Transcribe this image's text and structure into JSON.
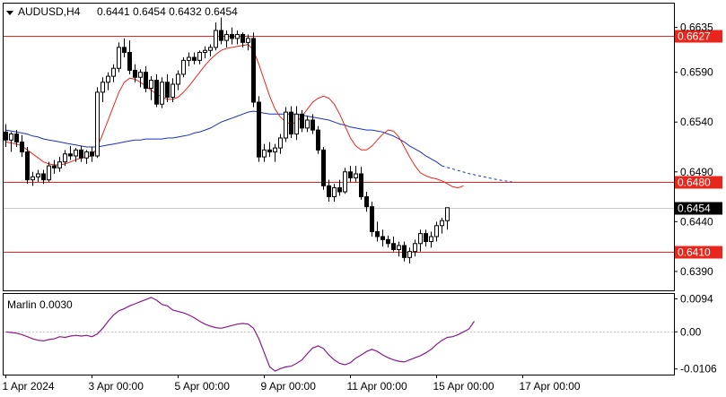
{
  "chart_data": [
    {
      "type": "candlestick",
      "symbol": "AUDUSD,H4",
      "ohlc_label": "0.6441 0.6454 0.6432 0.6454",
      "ylim": [
        0.6371,
        0.6659
      ],
      "price_ticks": [
        "0.6635",
        "0.6590",
        "0.6540",
        "0.6490",
        "0.6440",
        "0.6390"
      ],
      "price_tick_values": [
        0.6635,
        0.659,
        0.654,
        0.649,
        0.644,
        0.639
      ],
      "levels": [
        {
          "value": 0.6627,
          "label": "0.6627",
          "color": "#e8261c"
        },
        {
          "value": 0.648,
          "label": "0.6480",
          "color": "#e8261c"
        },
        {
          "value": 0.641,
          "label": "0.6410",
          "color": "#e8261c"
        }
      ],
      "current_price": {
        "value": 0.6454,
        "label": "0.6454"
      },
      "x_labels": [
        "1 Apr 2024",
        "3 Apr 00:00",
        "5 Apr 00:00",
        "9 Apr 00:00",
        "11 Apr 00:00",
        "15 Apr 00:00",
        "17 Apr 00:00"
      ],
      "x_label_bar_index": [
        0,
        16,
        32,
        48,
        64,
        80,
        96
      ],
      "candles": [
        [
          0.653,
          0.6538,
          0.6515,
          0.6522
        ],
        [
          0.6522,
          0.653,
          0.651,
          0.6528
        ],
        [
          0.6528,
          0.6532,
          0.6515,
          0.652
        ],
        [
          0.652,
          0.6527,
          0.6505,
          0.651
        ],
        [
          0.651,
          0.6515,
          0.6478,
          0.6482
        ],
        [
          0.6482,
          0.649,
          0.6476,
          0.6485
        ],
        [
          0.6485,
          0.6492,
          0.648,
          0.6488
        ],
        [
          0.6488,
          0.6492,
          0.6478,
          0.6482
        ],
        [
          0.6482,
          0.65,
          0.648,
          0.6496
        ],
        [
          0.6496,
          0.6502,
          0.6488,
          0.6494
        ],
        [
          0.6494,
          0.6505,
          0.649,
          0.65
        ],
        [
          0.65,
          0.6512,
          0.6496,
          0.6508
        ],
        [
          0.6508,
          0.6516,
          0.6502,
          0.6506
        ],
        [
          0.6506,
          0.6514,
          0.65,
          0.6512
        ],
        [
          0.6512,
          0.6516,
          0.65,
          0.6504
        ],
        [
          0.6504,
          0.6512,
          0.6498,
          0.651
        ],
        [
          0.651,
          0.6515,
          0.65,
          0.6506
        ],
        [
          0.6506,
          0.6575,
          0.6504,
          0.657
        ],
        [
          0.657,
          0.6585,
          0.656,
          0.658
        ],
        [
          0.658,
          0.659,
          0.6572,
          0.6586
        ],
        [
          0.6586,
          0.6598,
          0.658,
          0.6594
        ],
        [
          0.6594,
          0.662,
          0.659,
          0.6615
        ],
        [
          0.6615,
          0.6624,
          0.6605,
          0.661
        ],
        [
          0.661,
          0.6622,
          0.6588,
          0.6592
        ],
        [
          0.6592,
          0.6598,
          0.658,
          0.6585
        ],
        [
          0.6585,
          0.6593,
          0.6575,
          0.659
        ],
        [
          0.659,
          0.6596,
          0.657,
          0.6574
        ],
        [
          0.6574,
          0.6586,
          0.6562,
          0.6582
        ],
        [
          0.6582,
          0.6588,
          0.6555,
          0.6558
        ],
        [
          0.6558,
          0.6585,
          0.6554,
          0.658
        ],
        [
          0.658,
          0.6588,
          0.656,
          0.6565
        ],
        [
          0.6565,
          0.6584,
          0.656,
          0.6578
        ],
        [
          0.6578,
          0.6592,
          0.6572,
          0.6588
        ],
        [
          0.6588,
          0.6605,
          0.6585,
          0.6602
        ],
        [
          0.6602,
          0.661,
          0.6596,
          0.6605
        ],
        [
          0.6605,
          0.661,
          0.6598,
          0.6602
        ],
        [
          0.6602,
          0.6612,
          0.6598,
          0.661
        ],
        [
          0.661,
          0.6616,
          0.6604,
          0.6612
        ],
        [
          0.6612,
          0.6618,
          0.6606,
          0.6615
        ],
        [
          0.6615,
          0.664,
          0.6612,
          0.6632
        ],
        [
          0.6632,
          0.6645,
          0.6618,
          0.6622
        ],
        [
          0.6622,
          0.6632,
          0.6615,
          0.6628
        ],
        [
          0.6628,
          0.6635,
          0.6618,
          0.6624
        ],
        [
          0.6624,
          0.6632,
          0.6618,
          0.6628
        ],
        [
          0.6628,
          0.663,
          0.6615,
          0.662
        ],
        [
          0.662,
          0.6628,
          0.6612,
          0.6624
        ],
        [
          0.6624,
          0.663,
          0.6555,
          0.656
        ],
        [
          0.656,
          0.6566,
          0.65,
          0.6505
        ],
        [
          0.6505,
          0.6518,
          0.65,
          0.6512
        ],
        [
          0.6512,
          0.652,
          0.6505,
          0.651
        ],
        [
          0.651,
          0.6518,
          0.65,
          0.6514
        ],
        [
          0.6514,
          0.6528,
          0.6508,
          0.6524
        ],
        [
          0.6524,
          0.6555,
          0.652,
          0.655
        ],
        [
          0.655,
          0.6556,
          0.6524,
          0.6528
        ],
        [
          0.6528,
          0.6556,
          0.6522,
          0.6548
        ],
        [
          0.6548,
          0.6552,
          0.653,
          0.6534
        ],
        [
          0.6534,
          0.6546,
          0.653,
          0.6542
        ],
        [
          0.6542,
          0.6548,
          0.6528,
          0.6532
        ],
        [
          0.6532,
          0.6536,
          0.6508,
          0.6512
        ],
        [
          0.6512,
          0.6515,
          0.6472,
          0.6476
        ],
        [
          0.6476,
          0.6482,
          0.646,
          0.6465
        ],
        [
          0.6465,
          0.6478,
          0.646,
          0.6474
        ],
        [
          0.6474,
          0.6482,
          0.6466,
          0.647
        ],
        [
          0.647,
          0.6494,
          0.6468,
          0.649
        ],
        [
          0.649,
          0.6496,
          0.648,
          0.6484
        ],
        [
          0.6484,
          0.6496,
          0.648,
          0.6488
        ],
        [
          0.6488,
          0.6495,
          0.6462,
          0.6465
        ],
        [
          0.6465,
          0.647,
          0.645,
          0.6455
        ],
        [
          0.6455,
          0.646,
          0.6425,
          0.643
        ],
        [
          0.643,
          0.644,
          0.642,
          0.6425
        ],
        [
          0.6425,
          0.6432,
          0.6415,
          0.6422
        ],
        [
          0.6422,
          0.6426,
          0.6414,
          0.6418
        ],
        [
          0.6418,
          0.6425,
          0.641,
          0.6412
        ],
        [
          0.6412,
          0.642,
          0.6405,
          0.6416
        ],
        [
          0.6416,
          0.642,
          0.64,
          0.6404
        ],
        [
          0.6404,
          0.6414,
          0.6398,
          0.641
        ],
        [
          0.641,
          0.6422,
          0.6405,
          0.6418
        ],
        [
          0.6418,
          0.6432,
          0.641,
          0.6428
        ],
        [
          0.6428,
          0.6432,
          0.6415,
          0.642
        ],
        [
          0.642,
          0.643,
          0.6414,
          0.6425
        ],
        [
          0.6425,
          0.644,
          0.642,
          0.6436
        ],
        [
          0.6436,
          0.6444,
          0.6428,
          0.6441
        ],
        [
          0.6441,
          0.6454,
          0.6432,
          0.6454
        ]
      ],
      "red_ma": [
        0.652,
        0.6519,
        0.6518,
        0.6516,
        0.6512,
        0.6508,
        0.6504,
        0.65,
        0.6498,
        0.6497,
        0.6497,
        0.6498,
        0.65,
        0.6502,
        0.6504,
        0.6505,
        0.6506,
        0.6515,
        0.6528,
        0.6542,
        0.6556,
        0.657,
        0.658,
        0.6584,
        0.6583,
        0.658,
        0.6576,
        0.6572,
        0.6568,
        0.6565,
        0.6563,
        0.6563,
        0.6565,
        0.657,
        0.6576,
        0.6583,
        0.659,
        0.6597,
        0.6603,
        0.6608,
        0.6612,
        0.6614,
        0.6615,
        0.6616,
        0.6617,
        0.6618,
        0.6612,
        0.6598,
        0.6582,
        0.6566,
        0.6553,
        0.6545,
        0.654,
        0.6538,
        0.654,
        0.6546,
        0.6553,
        0.656,
        0.6564,
        0.6566,
        0.6564,
        0.6558,
        0.6548,
        0.6536,
        0.6524,
        0.6516,
        0.6512,
        0.6512,
        0.6516,
        0.6522,
        0.6528,
        0.6532,
        0.6531,
        0.6525,
        0.6515,
        0.6505,
        0.6496,
        0.6489,
        0.6486,
        0.6484,
        0.6483,
        0.6481,
        0.6478,
        0.6475,
        0.6474,
        0.6476
      ],
      "blue_ma": [
        0.6532,
        0.6531,
        0.653,
        0.6529,
        0.6528,
        0.6526,
        0.6525,
        0.6523,
        0.6522,
        0.6521,
        0.652,
        0.6519,
        0.6518,
        0.6517,
        0.6516,
        0.6515,
        0.6515,
        0.6515,
        0.6516,
        0.6517,
        0.6518,
        0.6519,
        0.652,
        0.6521,
        0.6522,
        0.6522,
        0.6523,
        0.6523,
        0.6523,
        0.6523,
        0.6524,
        0.6524,
        0.6525,
        0.6526,
        0.6527,
        0.6529,
        0.653,
        0.6532,
        0.6534,
        0.6537,
        0.654,
        0.6542,
        0.6544,
        0.6546,
        0.6548,
        0.655,
        0.6551,
        0.655,
        0.6549,
        0.6548,
        0.6548,
        0.6548,
        0.6548,
        0.6548,
        0.6548,
        0.6547,
        0.6546,
        0.6545,
        0.6544,
        0.6543,
        0.6542,
        0.654,
        0.6538,
        0.6537,
        0.6535,
        0.6534,
        0.6533,
        0.6532,
        0.6532,
        0.6531,
        0.653,
        0.6528,
        0.6526,
        0.6523,
        0.652,
        0.6516,
        0.6513,
        0.651,
        0.6506,
        0.6503,
        0.65,
        0.6496
      ],
      "blue_ma_projection": [
        0.6496,
        0.6492,
        0.6488,
        0.6485,
        0.6482,
        0.648
      ]
    },
    {
      "type": "line",
      "title": "Marlin 0.0030",
      "ylim": [
        -0.0122,
        0.0108
      ],
      "ticks": [
        "0.0094",
        "0.00",
        "-0.0106"
      ],
      "tick_values": [
        0.0094,
        0.0,
        -0.0106
      ],
      "values": [
        0.0,
        -0.0002,
        -0.0004,
        -0.0008,
        -0.0014,
        -0.002,
        -0.0024,
        -0.0026,
        -0.0022,
        -0.002,
        -0.0014,
        -0.0016,
        -0.0012,
        -0.001,
        -0.0012,
        -0.001,
        -0.0014,
        -0.0006,
        0.001,
        0.003,
        0.0048,
        0.006,
        0.0066,
        0.0074,
        0.008,
        0.0086,
        0.0092,
        0.0098,
        0.009,
        0.0078,
        0.0074,
        0.0062,
        0.0058,
        0.0054,
        0.0048,
        0.004,
        0.003,
        0.0022,
        0.0016,
        0.0012,
        0.001,
        0.0014,
        0.0018,
        0.0022,
        0.0024,
        0.0022,
        0.001,
        -0.002,
        -0.006,
        -0.01,
        -0.0112,
        -0.0105,
        -0.01,
        -0.0098,
        -0.009,
        -0.008,
        -0.0062,
        -0.0046,
        -0.004,
        -0.0048,
        -0.0066,
        -0.008,
        -0.009,
        -0.0094,
        -0.0088,
        -0.0075,
        -0.0066,
        -0.0056,
        -0.005,
        -0.0056,
        -0.0066,
        -0.0074,
        -0.008,
        -0.0084,
        -0.0086,
        -0.008,
        -0.0074,
        -0.0068,
        -0.006,
        -0.005,
        -0.0036,
        -0.0024,
        -0.0016,
        -0.0014,
        -0.0008,
        0.0,
        0.0008,
        0.003
      ]
    }
  ]
}
